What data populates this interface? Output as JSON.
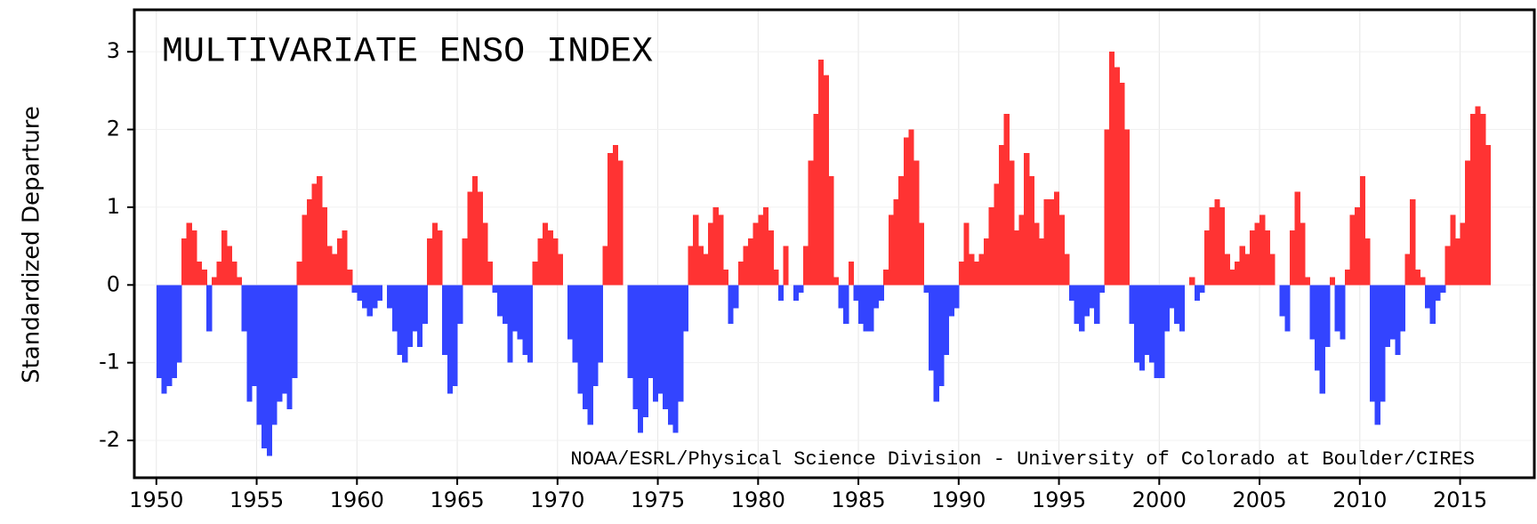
{
  "chart_data": {
    "type": "bar",
    "title": "MULTIVARIATE ENSO INDEX",
    "ylabel": "Standardized Departure",
    "annotation": "NOAA/ESRL/Physical Science Division - University of Colorado at Boulder/CIRES",
    "positive_color": "#ff3333",
    "negative_color": "#3344ff",
    "grid": true,
    "xlim": [
      1948.9,
      2018.7
    ],
    "xticks": [
      1950,
      1955,
      1960,
      1965,
      1970,
      1975,
      1980,
      1985,
      1990,
      1995,
      2000,
      2005,
      2010,
      2015
    ],
    "ylim": [
      -2.48,
      3.54
    ],
    "yticks": [
      -2,
      -1,
      0,
      1,
      2,
      3
    ],
    "x": [
      1950,
      1950.25,
      1950.5,
      1950.75,
      1951,
      1951.25,
      1951.5,
      1951.75,
      1952,
      1952.25,
      1952.5,
      1952.75,
      1953,
      1953.25,
      1953.5,
      1953.75,
      1954,
      1954.25,
      1954.5,
      1954.75,
      1955,
      1955.25,
      1955.5,
      1955.75,
      1956,
      1956.25,
      1956.5,
      1956.75,
      1957,
      1957.25,
      1957.5,
      1957.75,
      1958,
      1958.25,
      1958.5,
      1958.75,
      1959,
      1959.25,
      1959.5,
      1959.75,
      1960,
      1960.25,
      1960.5,
      1960.75,
      1961,
      1961.25,
      1961.5,
      1961.75,
      1962,
      1962.25,
      1962.5,
      1962.75,
      1963,
      1963.25,
      1963.5,
      1963.75,
      1964,
      1964.25,
      1964.5,
      1964.75,
      1965,
      1965.25,
      1965.5,
      1965.75,
      1966,
      1966.25,
      1966.5,
      1966.75,
      1967,
      1967.25,
      1967.5,
      1967.75,
      1968,
      1968.25,
      1968.5,
      1968.75,
      1969,
      1969.25,
      1969.5,
      1969.75,
      1970,
      1970.25,
      1970.5,
      1970.75,
      1971,
      1971.25,
      1971.5,
      1971.75,
      1972,
      1972.25,
      1972.5,
      1972.75,
      1973,
      1973.25,
      1973.5,
      1973.75,
      1974,
      1974.25,
      1974.5,
      1974.75,
      1975,
      1975.25,
      1975.5,
      1975.75,
      1976,
      1976.25,
      1976.5,
      1976.75,
      1977,
      1977.25,
      1977.5,
      1977.75,
      1978,
      1978.25,
      1978.5,
      1978.75,
      1979,
      1979.25,
      1979.5,
      1979.75,
      1980,
      1980.25,
      1980.5,
      1980.75,
      1981,
      1981.25,
      1981.5,
      1981.75,
      1982,
      1982.25,
      1982.5,
      1982.75,
      1983,
      1983.25,
      1983.5,
      1983.75,
      1984,
      1984.25,
      1984.5,
      1984.75,
      1985,
      1985.25,
      1985.5,
      1985.75,
      1986,
      1986.25,
      1986.5,
      1986.75,
      1987,
      1987.25,
      1987.5,
      1987.75,
      1988,
      1988.25,
      1988.5,
      1988.75,
      1989,
      1989.25,
      1989.5,
      1989.75,
      1990,
      1990.25,
      1990.5,
      1990.75,
      1991,
      1991.25,
      1991.5,
      1991.75,
      1992,
      1992.25,
      1992.5,
      1992.75,
      1993,
      1993.25,
      1993.5,
      1993.75,
      1994,
      1994.25,
      1994.5,
      1994.75,
      1995,
      1995.25,
      1995.5,
      1995.75,
      1996,
      1996.25,
      1996.5,
      1996.75,
      1997,
      1997.25,
      1997.5,
      1997.75,
      1998,
      1998.25,
      1998.5,
      1998.75,
      1999,
      1999.25,
      1999.5,
      1999.75,
      2000,
      2000.25,
      2000.5,
      2000.75,
      2001,
      2001.25,
      2001.5,
      2001.75,
      2002,
      2002.25,
      2002.5,
      2002.75,
      2003,
      2003.25,
      2003.5,
      2003.75,
      2004,
      2004.25,
      2004.5,
      2004.75,
      2005,
      2005.25,
      2005.5,
      2005.75,
      2006,
      2006.25,
      2006.5,
      2006.75,
      2007,
      2007.25,
      2007.5,
      2007.75,
      2008,
      2008.25,
      2008.5,
      2008.75,
      2009,
      2009.25,
      2009.5,
      2009.75,
      2010,
      2010.25,
      2010.5,
      2010.75,
      2011,
      2011.25,
      2011.5,
      2011.75,
      2012,
      2012.25,
      2012.5,
      2012.75,
      2013,
      2013.25,
      2013.5,
      2013.75,
      2014,
      2014.25,
      2014.5,
      2014.75,
      2015,
      2015.25,
      2015.5,
      2015.75,
      2016,
      2016.25
    ],
    "values": [
      -1.2,
      -1.4,
      -1.3,
      -1.2,
      -1.0,
      0.6,
      0.8,
      0.7,
      0.3,
      0.2,
      -0.6,
      0.1,
      0.3,
      0.7,
      0.5,
      0.3,
      0.1,
      -0.6,
      -1.5,
      -1.3,
      -1.8,
      -2.1,
      -2.2,
      -1.8,
      -1.5,
      -1.4,
      -1.6,
      -1.2,
      0.3,
      0.9,
      1.1,
      1.3,
      1.4,
      1.0,
      0.5,
      0.4,
      0.6,
      0.7,
      0.2,
      -0.1,
      -0.2,
      -0.3,
      -0.4,
      -0.3,
      -0.2,
      0.0,
      -0.3,
      -0.6,
      -0.9,
      -1.0,
      -0.8,
      -0.6,
      -0.8,
      -0.5,
      0.6,
      0.8,
      0.7,
      -0.9,
      -1.4,
      -1.3,
      -0.5,
      0.6,
      1.2,
      1.4,
      1.2,
      0.8,
      0.3,
      -0.1,
      -0.4,
      -0.5,
      -1.0,
      -0.6,
      -0.7,
      -0.9,
      -1.0,
      0.3,
      0.6,
      0.8,
      0.7,
      0.6,
      0.4,
      0.0,
      -0.7,
      -1.0,
      -1.4,
      -1.6,
      -1.8,
      -1.3,
      -1.0,
      0.5,
      1.7,
      1.8,
      1.6,
      0.0,
      -1.2,
      -1.6,
      -1.9,
      -1.7,
      -1.2,
      -1.5,
      -1.4,
      -1.6,
      -1.8,
      -1.9,
      -1.5,
      -0.6,
      0.5,
      0.9,
      0.5,
      0.4,
      0.8,
      1.0,
      0.9,
      0.2,
      -0.5,
      -0.3,
      0.3,
      0.5,
      0.6,
      0.8,
      0.9,
      1.0,
      0.7,
      0.2,
      -0.2,
      0.5,
      0.0,
      -0.2,
      -0.1,
      0.5,
      1.6,
      2.2,
      2.9,
      2.7,
      1.4,
      0.1,
      -0.3,
      -0.5,
      0.3,
      -0.2,
      -0.5,
      -0.6,
      -0.6,
      -0.3,
      -0.2,
      0.2,
      0.9,
      1.1,
      1.4,
      1.9,
      2.0,
      1.6,
      0.8,
      -0.1,
      -1.1,
      -1.5,
      -1.3,
      -0.9,
      -0.4,
      -0.3,
      0.3,
      0.8,
      0.4,
      0.3,
      0.4,
      0.6,
      1.0,
      1.3,
      1.8,
      2.2,
      1.6,
      0.7,
      0.9,
      1.7,
      1.4,
      0.8,
      0.6,
      1.1,
      1.1,
      1.2,
      0.9,
      0.4,
      -0.2,
      -0.5,
      -0.6,
      -0.4,
      -0.3,
      -0.5,
      -0.1,
      2.0,
      3.0,
      2.8,
      2.6,
      2.0,
      -0.5,
      -1.0,
      -1.1,
      -0.9,
      -1.0,
      -1.2,
      -1.2,
      -0.6,
      -0.3,
      -0.5,
      -0.6,
      0.0,
      0.1,
      -0.2,
      -0.1,
      0.7,
      1.0,
      1.1,
      1.0,
      0.4,
      0.2,
      0.3,
      0.5,
      0.4,
      0.7,
      0.8,
      0.9,
      0.7,
      0.4,
      0.0,
      -0.4,
      -0.6,
      0.7,
      1.2,
      0.8,
      0.1,
      -0.7,
      -1.1,
      -1.4,
      -0.8,
      0.1,
      -0.6,
      -0.7,
      0.2,
      0.9,
      1.0,
      1.4,
      0.6,
      -1.5,
      -1.8,
      -1.5,
      -0.8,
      -0.7,
      -0.9,
      -0.6,
      0.4,
      1.1,
      0.2,
      0.1,
      -0.3,
      -0.5,
      -0.2,
      -0.1,
      0.5,
      0.9,
      0.6,
      0.8,
      1.6,
      2.2,
      2.3,
      2.2,
      1.8
    ]
  }
}
